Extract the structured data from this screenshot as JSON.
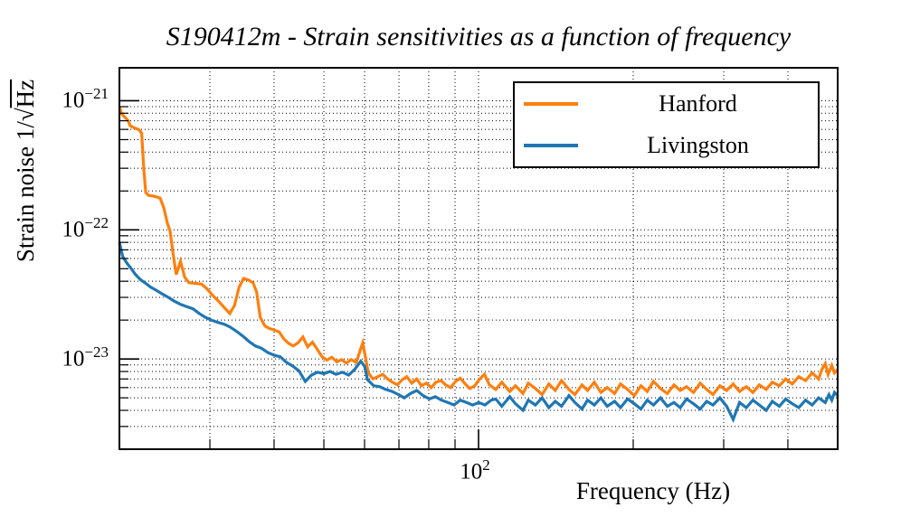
{
  "title": "S190412m - Strain sensitivities as a function of frequency",
  "colors": {
    "hanford": "#ff7f0e",
    "livingston": "#1f77b4",
    "axis": "#000000"
  },
  "legend": {
    "items": [
      {
        "label": "Hanford",
        "color": "#ff7f0e"
      },
      {
        "label": "Livingston",
        "color": "#1f77b4"
      }
    ]
  },
  "axes": {
    "xlabel": "Frequency (Hz)",
    "ylabel": {
      "prefix": "Strain noise 1/",
      "radical": "√",
      "radicand": "Hz"
    },
    "x": {
      "scale": "log",
      "min": 20,
      "max": 500,
      "major_ticks": [
        {
          "value": 100,
          "base": "10",
          "exp": "2"
        }
      ],
      "minor_ticks": [
        30,
        40,
        50,
        60,
        70,
        80,
        90,
        200,
        300,
        400
      ]
    },
    "y": {
      "scale": "log",
      "min": 2e-24,
      "max": 1.8e-21,
      "major_ticks": [
        {
          "value": 1e-21,
          "base": "10",
          "exp": "−21"
        },
        {
          "value": 1e-22,
          "base": "10",
          "exp": "−22"
        },
        {
          "value": 1e-23,
          "base": "10",
          "exp": "−23"
        }
      ],
      "minor_ticks": [
        3e-24,
        4e-24,
        5e-24,
        6e-24,
        7e-24,
        8e-24,
        9e-24,
        2e-23,
        3e-23,
        4e-23,
        5e-23,
        6e-23,
        7e-23,
        8e-23,
        9e-23,
        2e-22,
        3e-22,
        4e-22,
        5e-22,
        6e-22,
        7e-22,
        8e-22,
        9e-22
      ]
    }
  },
  "chart_data": {
    "type": "line",
    "title": "S190412m - Strain sensitivities as a function of frequency",
    "xlabel": "Frequency (Hz)",
    "ylabel": "Strain noise 1/√Hz",
    "xscale": "log",
    "yscale": "log",
    "xlim": [
      20,
      500
    ],
    "ylim": [
      2e-24,
      1.8e-21
    ],
    "grid": "dotted-major-and-minor",
    "legend_position": "upper right",
    "strain_unit": "1e-24",
    "series": [
      {
        "name": "Hanford",
        "color": "#ff7f0e",
        "points": [
          [
            20.0,
            900
          ],
          [
            20.2,
            790
          ],
          [
            20.5,
            745
          ],
          [
            20.8,
            700
          ],
          [
            21.0,
            640
          ],
          [
            21.4,
            615
          ],
          [
            21.8,
            600
          ],
          [
            22.1,
            560
          ],
          [
            22.3,
            300
          ],
          [
            22.5,
            195
          ],
          [
            22.8,
            185
          ],
          [
            23.4,
            182
          ],
          [
            24.0,
            176
          ],
          [
            24.4,
            148
          ],
          [
            24.8,
            112
          ],
          [
            25.1,
            98
          ],
          [
            25.4,
            68
          ],
          [
            25.8,
            45
          ],
          [
            26.3,
            57
          ],
          [
            26.8,
            43
          ],
          [
            27.3,
            39
          ],
          [
            28.1,
            38.5
          ],
          [
            28.9,
            38
          ],
          [
            29.6,
            35
          ],
          [
            30.4,
            31
          ],
          [
            31.2,
            28
          ],
          [
            32.0,
            25
          ],
          [
            32.8,
            22.5
          ],
          [
            33.5,
            26
          ],
          [
            34.2,
            36
          ],
          [
            34.9,
            42
          ],
          [
            35.6,
            41
          ],
          [
            36.4,
            39
          ],
          [
            37.0,
            33
          ],
          [
            37.6,
            21
          ],
          [
            38.4,
            18
          ],
          [
            39.2,
            17.2
          ],
          [
            40.0,
            16.8
          ],
          [
            40.9,
            16.2
          ],
          [
            41.8,
            14.3
          ],
          [
            42.7,
            13.2
          ],
          [
            43.6,
            12.6
          ],
          [
            44.6,
            13.4
          ],
          [
            45.5,
            14.8
          ],
          [
            46.5,
            12.4
          ],
          [
            47.5,
            13.5
          ],
          [
            48.6,
            11.8
          ],
          [
            49.6,
            10.4
          ],
          [
            50.7,
            9.8
          ],
          [
            51.8,
            10.3
          ],
          [
            53.0,
            9.5
          ],
          [
            54.1,
            9.9
          ],
          [
            55.3,
            9.3
          ],
          [
            56.5,
            9.9
          ],
          [
            57.8,
            9.4
          ],
          [
            59.0,
            12.0
          ],
          [
            59.5,
            13.3
          ],
          [
            60.2,
            10.5
          ],
          [
            61.0,
            7.8
          ],
          [
            62.3,
            7.0
          ],
          [
            63.7,
            7.3
          ],
          [
            65.1,
            7.6
          ],
          [
            66.5,
            7.0
          ],
          [
            68.0,
            6.6
          ],
          [
            69.5,
            6.3
          ],
          [
            71.0,
            6.9
          ],
          [
            72.5,
            7.3
          ],
          [
            74.1,
            6.5
          ],
          [
            75.8,
            7.0
          ],
          [
            77.4,
            6.2
          ],
          [
            79.1,
            6.5
          ],
          [
            80.9,
            6.0
          ],
          [
            82.6,
            6.6
          ],
          [
            84.5,
            6.8
          ],
          [
            86.3,
            6.3
          ],
          [
            88.2,
            6.0
          ],
          [
            90.2,
            6.7
          ],
          [
            92.1,
            7.1
          ],
          [
            94.2,
            6.4
          ],
          [
            96.2,
            5.9
          ],
          [
            98.3,
            6.2
          ],
          [
            100.5,
            7.0
          ],
          [
            102.7,
            7.6
          ],
          [
            105,
            6.3
          ],
          [
            108,
            5.8
          ],
          [
            111,
            6.6
          ],
          [
            115,
            5.6
          ],
          [
            118,
            6.2
          ],
          [
            122,
            5.4
          ],
          [
            125,
            6.5
          ],
          [
            129,
            5.9
          ],
          [
            133,
            5.3
          ],
          [
            137,
            6.4
          ],
          [
            141,
            5.7
          ],
          [
            145,
            6.8
          ],
          [
            150,
            5.8
          ],
          [
            154,
            5.3
          ],
          [
            159,
            6.3
          ],
          [
            163,
            5.7
          ],
          [
            168,
            6.6
          ],
          [
            173,
            5.5
          ],
          [
            178,
            6.0
          ],
          [
            184,
            5.4
          ],
          [
            189,
            6.4
          ],
          [
            195,
            5.8
          ],
          [
            201,
            5.2
          ],
          [
            207,
            6.2
          ],
          [
            213,
            5.6
          ],
          [
            219,
            6.7
          ],
          [
            226,
            5.9
          ],
          [
            233,
            5.4
          ],
          [
            240,
            6.3
          ],
          [
            247,
            5.7
          ],
          [
            254,
            6.1
          ],
          [
            262,
            5.5
          ],
          [
            270,
            6.5
          ],
          [
            278,
            5.8
          ],
          [
            286,
            5.3
          ],
          [
            295,
            6.2
          ],
          [
            304,
            5.7
          ],
          [
            313,
            6.4
          ],
          [
            322,
            5.6
          ],
          [
            332,
            6.1
          ],
          [
            342,
            5.5
          ],
          [
            352,
            6.3
          ],
          [
            363,
            5.8
          ],
          [
            373,
            6.6
          ],
          [
            385,
            6.2
          ],
          [
            396,
            7.0
          ],
          [
            408,
            6.4
          ],
          [
            420,
            7.3
          ],
          [
            433,
            6.8
          ],
          [
            446,
            7.8
          ],
          [
            459,
            7.0
          ],
          [
            466,
            8.3
          ],
          [
            473,
            9.2
          ],
          [
            479,
            7.6
          ],
          [
            487,
            8.9
          ],
          [
            493,
            7.8
          ],
          [
            500,
            8.3
          ]
        ]
      },
      {
        "name": "Livingston",
        "color": "#1f77b4",
        "points": [
          [
            20.0,
            80
          ],
          [
            20.3,
            62
          ],
          [
            20.7,
            55
          ],
          [
            21.1,
            50
          ],
          [
            21.5,
            45
          ],
          [
            22.0,
            41
          ],
          [
            22.5,
            38.5
          ],
          [
            23.0,
            36
          ],
          [
            23.6,
            34
          ],
          [
            24.2,
            32
          ],
          [
            24.9,
            30
          ],
          [
            25.6,
            28
          ],
          [
            26.3,
            26.5
          ],
          [
            27.0,
            25.5
          ],
          [
            27.8,
            24.5
          ],
          [
            28.6,
            22.5
          ],
          [
            29.4,
            21
          ],
          [
            30.2,
            20
          ],
          [
            31.1,
            19.2
          ],
          [
            32.0,
            18.6
          ],
          [
            32.9,
            17.6
          ],
          [
            33.8,
            16.4
          ],
          [
            34.8,
            15.0
          ],
          [
            35.8,
            13.6
          ],
          [
            36.8,
            12.6
          ],
          [
            37.8,
            12.1
          ],
          [
            38.9,
            11.2
          ],
          [
            40.0,
            10.7
          ],
          [
            41.1,
            10.4
          ],
          [
            42.3,
            9.4
          ],
          [
            43.5,
            8.8
          ],
          [
            44.7,
            8.1
          ],
          [
            46.0,
            6.7
          ],
          [
            47.3,
            7.5
          ],
          [
            48.6,
            7.9
          ],
          [
            50.0,
            7.7
          ],
          [
            51.4,
            8.0
          ],
          [
            52.8,
            7.6
          ],
          [
            54.3,
            7.9
          ],
          [
            55.9,
            7.5
          ],
          [
            57.4,
            8.3
          ],
          [
            59.0,
            9.6
          ],
          [
            60.0,
            8.8
          ],
          [
            60.8,
            6.9
          ],
          [
            62.5,
            6.2
          ],
          [
            64.2,
            6.1
          ],
          [
            66.0,
            5.8
          ],
          [
            67.9,
            5.6
          ],
          [
            69.8,
            5.3
          ],
          [
            71.7,
            5.0
          ],
          [
            73.7,
            5.4
          ],
          [
            75.8,
            5.7
          ],
          [
            78.0,
            5.2
          ],
          [
            80.2,
            4.9
          ],
          [
            82.4,
            5.1
          ],
          [
            84.7,
            4.8
          ],
          [
            87.1,
            4.6
          ],
          [
            89.6,
            4.4
          ],
          [
            92.1,
            4.8
          ],
          [
            94.7,
            4.6
          ],
          [
            97.4,
            4.4
          ],
          [
            100.1,
            4.6
          ],
          [
            102.9,
            4.4
          ],
          [
            105.8,
            4.8
          ],
          [
            108,
            4.9
          ],
          [
            111,
            4.3
          ],
          [
            115,
            5.1
          ],
          [
            118,
            4.5
          ],
          [
            122,
            4.0
          ],
          [
            125,
            4.8
          ],
          [
            129,
            4.4
          ],
          [
            133,
            5.0
          ],
          [
            137,
            4.2
          ],
          [
            141,
            4.7
          ],
          [
            145,
            4.3
          ],
          [
            150,
            5.2
          ],
          [
            154,
            4.6
          ],
          [
            159,
            4.1
          ],
          [
            163,
            4.8
          ],
          [
            168,
            4.4
          ],
          [
            173,
            5.0
          ],
          [
            178,
            4.3
          ],
          [
            184,
            4.7
          ],
          [
            189,
            4.2
          ],
          [
            195,
            4.9
          ],
          [
            201,
            4.5
          ],
          [
            207,
            4.1
          ],
          [
            213,
            4.8
          ],
          [
            219,
            4.4
          ],
          [
            226,
            5.0
          ],
          [
            233,
            4.3
          ],
          [
            240,
            4.6
          ],
          [
            247,
            4.2
          ],
          [
            254,
            4.9
          ],
          [
            262,
            4.5
          ],
          [
            270,
            4.1
          ],
          [
            278,
            4.7
          ],
          [
            286,
            4.4
          ],
          [
            295,
            5.0
          ],
          [
            304,
            4.3
          ],
          [
            313,
            3.4
          ],
          [
            322,
            4.6
          ],
          [
            332,
            4.2
          ],
          [
            342,
            4.8
          ],
          [
            352,
            4.4
          ],
          [
            363,
            4.0
          ],
          [
            373,
            4.7
          ],
          [
            385,
            4.3
          ],
          [
            396,
            4.9
          ],
          [
            408,
            4.5
          ],
          [
            420,
            4.2
          ],
          [
            433,
            4.8
          ],
          [
            446,
            4.4
          ],
          [
            459,
            5.0
          ],
          [
            473,
            4.6
          ],
          [
            481,
            5.3
          ],
          [
            487,
            4.8
          ],
          [
            493,
            5.5
          ],
          [
            500,
            5.2
          ]
        ]
      }
    ]
  }
}
